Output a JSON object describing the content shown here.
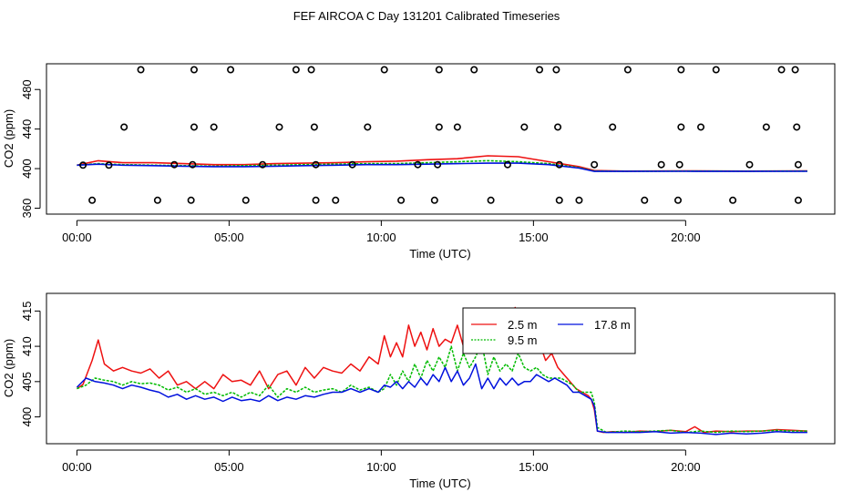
{
  "figure": {
    "title": "FEF AIRCOA C  Day 131201  Calibrated Timeseries"
  },
  "chart_data": [
    {
      "type": "line",
      "title": "",
      "xlabel": "Time (UTC)",
      "ylabel": "CO2 (ppm)",
      "xlim": [
        -1.0,
        24.9
      ],
      "ylim": [
        354,
        506
      ],
      "x_ticks": [
        0,
        5,
        10,
        15,
        20
      ],
      "x_tick_labels": [
        "00:00",
        "05:00",
        "10:00",
        "15:00",
        "20:00"
      ],
      "y_ticks": [
        360,
        400,
        440,
        480
      ],
      "y_tick_labels": [
        "360",
        "400",
        "440",
        "480"
      ],
      "series": [
        {
          "name": "2.5 m",
          "color": "#ee1111",
          "x": [
            0.0,
            0.7,
            1.5,
            2.5,
            3.5,
            4.5,
            5.5,
            6.5,
            7.5,
            8.5,
            9.5,
            10.5,
            11.5,
            12.5,
            13.5,
            14.5,
            15.5,
            16.5,
            17.0,
            18.0,
            20.0,
            22.0,
            24.0
          ],
          "values": [
            403.5,
            408,
            406,
            406,
            405,
            404,
            404,
            405,
            405.5,
            406,
            407,
            407.5,
            409,
            410,
            413,
            412,
            407,
            402,
            398,
            397.5,
            397.8,
            397.5,
            397.8
          ]
        },
        {
          "name": "9.5 m",
          "color": "#00bb00",
          "x": [
            0.0,
            0.7,
            1.5,
            2.5,
            3.5,
            4.5,
            5.5,
            6.5,
            7.5,
            8.5,
            9.5,
            10.5,
            11.5,
            12.5,
            13.5,
            14.5,
            15.5,
            16.5,
            17.0,
            18.0,
            20.0,
            22.0,
            24.0
          ],
          "values": [
            403.5,
            405,
            404,
            403.5,
            403,
            402.5,
            403,
            403.5,
            404,
            404.5,
            405,
            405,
            406,
            407,
            408,
            407,
            405,
            401,
            397.5,
            397.3,
            397.5,
            397.4,
            397.5
          ]
        },
        {
          "name": "17.8 m",
          "color": "#0011dd",
          "x": [
            0.0,
            0.7,
            1.5,
            2.5,
            3.5,
            4.5,
            5.5,
            6.5,
            7.5,
            8.5,
            9.5,
            10.5,
            11.5,
            12.5,
            13.5,
            14.5,
            15.5,
            16.5,
            17.0,
            18.0,
            20.0,
            22.0,
            24.0
          ],
          "values": [
            403.5,
            404.5,
            403.5,
            403,
            402.5,
            402,
            402,
            402.5,
            403,
            403.5,
            404,
            404,
            404.5,
            405,
            405.5,
            405.5,
            404,
            400.5,
            397.2,
            397.2,
            397.3,
            397.2,
            397.3
          ]
        }
      ],
      "calibration_points": {
        "x": [
          0.2,
          0.5,
          1.05,
          1.55,
          2.1,
          2.65,
          3.2,
          3.75,
          3.8,
          3.85,
          3.85,
          4.5,
          5.05,
          5.55,
          6.1,
          6.65,
          7.2,
          7.7,
          7.8,
          7.85,
          7.85,
          8.5,
          9.05,
          9.55,
          10.1,
          10.65,
          11.2,
          11.75,
          11.85,
          11.9,
          11.9,
          12.5,
          13.05,
          13.6,
          14.15,
          14.7,
          15.2,
          15.75,
          15.8,
          15.85,
          15.85,
          16.5,
          17.0,
          17.6,
          18.1,
          18.65,
          19.2,
          19.75,
          19.8,
          19.85,
          19.85,
          20.5,
          21.0,
          21.55,
          22.1,
          22.65,
          23.15,
          23.6,
          23.65,
          23.7,
          23.7
        ],
        "values": [
          403.5,
          368,
          403.5,
          442,
          500,
          368,
          404,
          368,
          404,
          442,
          500,
          442,
          500,
          368,
          404,
          442,
          500,
          500,
          442,
          404,
          368,
          368,
          404,
          442,
          500,
          368,
          404,
          368,
          404,
          442,
          500,
          442,
          500,
          368,
          404,
          442,
          500,
          500,
          442,
          404,
          368,
          368,
          404,
          442,
          500,
          368,
          404,
          368,
          404,
          442,
          500,
          442,
          500,
          368,
          404,
          442,
          500,
          500,
          442,
          404,
          368
        ]
      }
    },
    {
      "type": "line",
      "title": "",
      "xlabel": "Time (UTC)",
      "ylabel": "CO2 (ppm)",
      "xlim": [
        -1.0,
        24.9
      ],
      "ylim": [
        396.2,
        417.5
      ],
      "x_ticks": [
        0,
        5,
        10,
        15,
        20
      ],
      "x_tick_labels": [
        "00:00",
        "05:00",
        "10:00",
        "15:00",
        "20:00"
      ],
      "y_ticks": [
        400,
        405,
        410,
        415
      ],
      "y_tick_labels": [
        "400",
        "405",
        "410",
        "415"
      ],
      "legend": {
        "placement": "top-center",
        "entries": [
          "2.5 m",
          "9.5 m",
          "17.8 m"
        ]
      },
      "series": [
        {
          "name": "2.5 m",
          "color": "#ee1111",
          "x": [
            0.0,
            0.2,
            0.5,
            0.7,
            0.9,
            1.2,
            1.5,
            1.8,
            2.1,
            2.4,
            2.7,
            3.0,
            3.3,
            3.6,
            3.9,
            4.2,
            4.5,
            4.8,
            5.1,
            5.4,
            5.7,
            6.0,
            6.3,
            6.6,
            6.9,
            7.2,
            7.5,
            7.8,
            8.1,
            8.4,
            8.7,
            9.0,
            9.3,
            9.6,
            9.9,
            10.1,
            10.3,
            10.5,
            10.7,
            10.9,
            11.1,
            11.3,
            11.5,
            11.7,
            11.9,
            12.1,
            12.3,
            12.5,
            12.7,
            12.9,
            13.1,
            13.3,
            13.5,
            13.7,
            13.9,
            14.1,
            14.3,
            14.4,
            14.6,
            14.8,
            15.0,
            15.2,
            15.4,
            15.6,
            15.8,
            16.0,
            16.2,
            16.4,
            16.6,
            16.8,
            16.9,
            17.0,
            17.1,
            17.3,
            17.6,
            18.0,
            18.5,
            19.0,
            19.5,
            20.0,
            20.3,
            20.6,
            21.0,
            21.5,
            22.0,
            22.5,
            23.0,
            23.5,
            24.0
          ],
          "values": [
            404,
            404.6,
            408,
            410.9,
            407.5,
            406.5,
            407,
            406.5,
            406.2,
            406.8,
            405.5,
            406.5,
            404.5,
            405,
            404,
            405,
            404,
            406,
            405,
            405.2,
            404.5,
            406.5,
            404,
            406,
            406.5,
            404.5,
            407,
            405.5,
            407,
            406.5,
            406.2,
            407.5,
            406.5,
            408.5,
            407.5,
            411.5,
            408.5,
            410.5,
            408.5,
            413,
            410,
            412,
            409.5,
            412.5,
            410,
            411,
            410.5,
            413,
            410,
            413.5,
            412.5,
            414.5,
            411,
            414.5,
            413,
            414,
            412,
            415.5,
            412,
            413.5,
            411,
            410.5,
            408,
            409,
            407,
            406,
            405,
            404,
            403.5,
            403,
            402.5,
            401,
            398,
            397.8,
            397.9,
            397.8,
            398,
            397.9,
            398.1,
            397.9,
            398.6,
            397.8,
            398,
            397.9,
            398,
            398,
            398.2,
            398.1,
            398
          ]
        },
        {
          "name": "9.5 m",
          "color": "#00bb00",
          "x": [
            0.0,
            0.3,
            0.6,
            0.9,
            1.2,
            1.5,
            1.8,
            2.1,
            2.4,
            2.7,
            3.0,
            3.3,
            3.6,
            3.9,
            4.2,
            4.5,
            4.8,
            5.1,
            5.4,
            5.7,
            6.0,
            6.3,
            6.6,
            6.9,
            7.2,
            7.5,
            7.8,
            8.1,
            8.4,
            8.7,
            9.0,
            9.3,
            9.6,
            9.9,
            10.1,
            10.3,
            10.5,
            10.7,
            10.9,
            11.1,
            11.3,
            11.5,
            11.7,
            11.9,
            12.1,
            12.3,
            12.5,
            12.7,
            12.9,
            13.1,
            13.3,
            13.5,
            13.7,
            13.9,
            14.1,
            14.3,
            14.5,
            14.7,
            14.9,
            15.1,
            15.3,
            15.5,
            15.7,
            15.9,
            16.1,
            16.3,
            16.5,
            16.7,
            16.9,
            17.0,
            17.1,
            17.4,
            18.0,
            18.5,
            19.0,
            19.5,
            20.0,
            20.5,
            21.0,
            21.5,
            22.0,
            22.5,
            23.0,
            23.5,
            24.0
          ],
          "values": [
            404,
            404.5,
            405.5,
            405.2,
            405,
            404.5,
            405,
            404.7,
            404.8,
            404.5,
            403.8,
            404.2,
            403.5,
            404,
            403.2,
            403.5,
            403,
            403.5,
            402.8,
            403.5,
            403,
            404.5,
            402.8,
            404,
            403.5,
            404.2,
            403.5,
            403.8,
            404,
            403.5,
            404.5,
            403.8,
            404.2,
            403.5,
            404,
            406,
            404.5,
            406.5,
            405,
            407.5,
            405.5,
            408,
            406.5,
            408.5,
            407,
            410,
            406.5,
            409,
            407,
            408.5,
            410.5,
            406,
            408.5,
            406.5,
            407.5,
            406.5,
            409,
            407,
            406.5,
            407,
            406,
            405.5,
            405.5,
            405.5,
            405,
            404.5,
            403.5,
            403.5,
            403.5,
            402,
            398.5,
            397.8,
            398,
            397.9,
            398,
            398.1,
            397.8,
            398,
            397.8,
            398,
            397.9,
            398,
            398.1,
            398,
            398
          ]
        },
        {
          "name": "17.8 m",
          "color": "#0011dd",
          "x": [
            0.0,
            0.3,
            0.6,
            0.9,
            1.2,
            1.5,
            1.8,
            2.1,
            2.4,
            2.7,
            3.0,
            3.3,
            3.6,
            3.9,
            4.2,
            4.5,
            4.8,
            5.1,
            5.4,
            5.7,
            6.0,
            6.3,
            6.6,
            6.9,
            7.2,
            7.5,
            7.8,
            8.1,
            8.4,
            8.7,
            9.0,
            9.3,
            9.6,
            9.9,
            10.1,
            10.3,
            10.5,
            10.7,
            10.9,
            11.1,
            11.3,
            11.5,
            11.7,
            11.9,
            12.1,
            12.3,
            12.5,
            12.7,
            12.9,
            13.1,
            13.3,
            13.5,
            13.7,
            13.9,
            14.1,
            14.3,
            14.5,
            14.7,
            14.9,
            15.1,
            15.3,
            15.5,
            15.7,
            15.9,
            16.1,
            16.3,
            16.5,
            16.7,
            16.9,
            17.0,
            17.1,
            17.4,
            18.0,
            18.5,
            19.0,
            19.5,
            20.0,
            20.5,
            21.0,
            21.5,
            22.0,
            22.5,
            23.0,
            23.5,
            24.0
          ],
          "values": [
            404.2,
            405.5,
            405,
            404.8,
            404.5,
            404,
            404.5,
            404.2,
            403.8,
            403.5,
            402.8,
            403.2,
            402.5,
            403,
            402.5,
            402.8,
            402.2,
            402.8,
            402.3,
            402.5,
            402.2,
            403,
            402.3,
            402.8,
            402.5,
            403,
            402.8,
            403.2,
            403.5,
            403.5,
            404,
            403.5,
            404,
            403.5,
            404.5,
            404.2,
            405,
            404,
            405,
            404.2,
            405.5,
            404.5,
            406,
            405,
            407,
            405,
            406.5,
            404.5,
            405.5,
            407.5,
            404,
            405.5,
            404,
            405.5,
            404.5,
            405.5,
            404.5,
            405,
            405,
            406,
            405.5,
            405,
            405.5,
            405,
            404.5,
            403.5,
            403.5,
            403,
            402.5,
            401.5,
            398,
            397.8,
            397.8,
            397.8,
            397.9,
            397.7,
            397.8,
            397.7,
            397.5,
            397.7,
            397.6,
            397.7,
            397.9,
            397.8,
            397.8
          ]
        }
      ]
    }
  ]
}
